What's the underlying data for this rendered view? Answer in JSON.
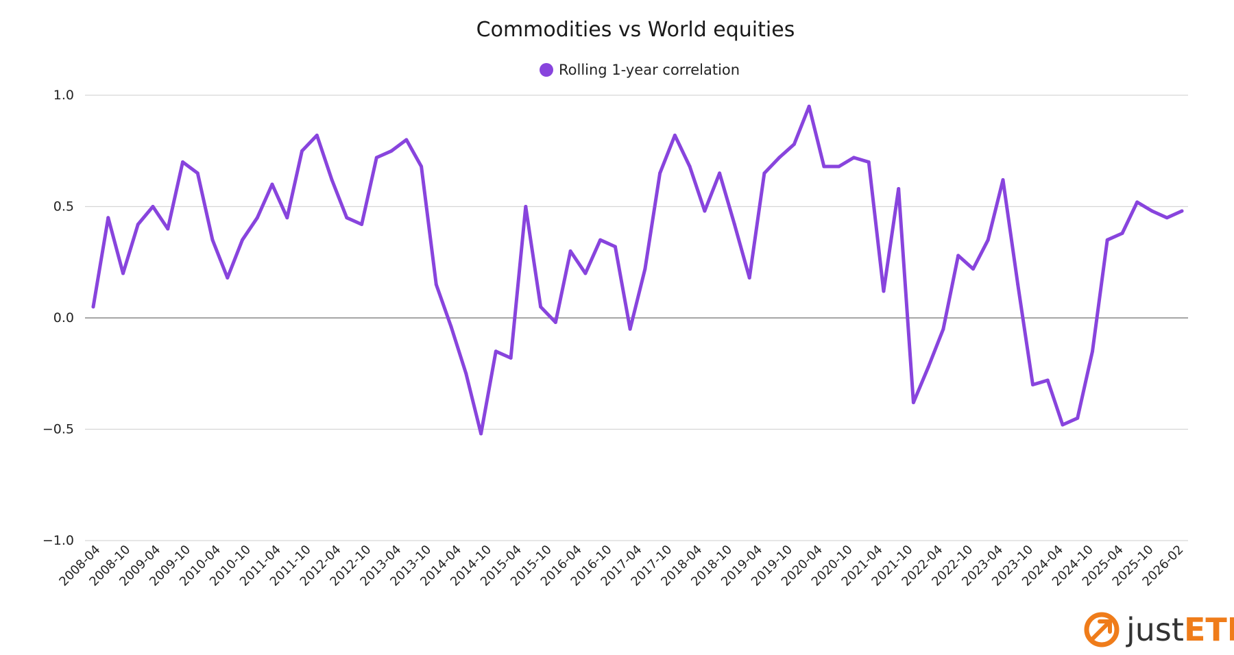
{
  "chart_data": {
    "type": "line",
    "title": "Commodities vs World equities",
    "legend_placement": "top-center",
    "grid": true,
    "ylim": [
      -1.0,
      1.0
    ],
    "y_ticks": [
      "1.0",
      "0.5",
      "0.0",
      "−0.5",
      "−1.0"
    ],
    "x_ticks": [
      "2008-04",
      "2008-10",
      "2009-04",
      "2009-10",
      "2010-04",
      "2010-10",
      "2011-04",
      "2011-10",
      "2012-04",
      "2012-10",
      "2013-04",
      "2013-10",
      "2014-04",
      "2014-10",
      "2015-04",
      "2015-10",
      "2016-04",
      "2016-10",
      "2017-04",
      "2017-10",
      "2018-04",
      "2018-10",
      "2019-04",
      "2019-10",
      "2020-04",
      "2020-10",
      "2021-04",
      "2021-10",
      "2022-04",
      "2022-10",
      "2023-04",
      "2023-10",
      "2024-04",
      "2024-10",
      "2025-04",
      "2025-10",
      "2026-02"
    ],
    "series": [
      {
        "name": "Rolling 1-year correlation",
        "color": "#8844dd",
        "values": [
          0.05,
          0.45,
          0.2,
          0.42,
          0.5,
          0.4,
          0.7,
          0.65,
          0.35,
          0.18,
          0.35,
          0.45,
          0.6,
          0.45,
          0.75,
          0.82,
          0.62,
          0.45,
          0.42,
          0.72,
          0.75,
          0.8,
          0.68,
          0.15,
          -0.04,
          -0.25,
          -0.52,
          -0.15,
          -0.18,
          0.5,
          0.05,
          -0.02,
          0.3,
          0.2,
          0.35,
          0.32,
          -0.05,
          0.22,
          0.65,
          0.82,
          0.68,
          0.48,
          0.65,
          0.42,
          0.18,
          0.65,
          0.72,
          0.78,
          0.95,
          0.68,
          0.68,
          0.72,
          0.7,
          0.12,
          0.58,
          -0.38,
          -0.22,
          -0.05,
          0.28,
          0.22,
          0.35,
          0.62,
          0.15,
          -0.3,
          -0.28,
          -0.48,
          -0.45,
          -0.15,
          0.35,
          0.38,
          0.52,
          0.48,
          0.45,
          0.48
        ]
      }
    ]
  },
  "brand": {
    "part1": "just",
    "part2": "ETF",
    "color": "#ef7c1a"
  }
}
